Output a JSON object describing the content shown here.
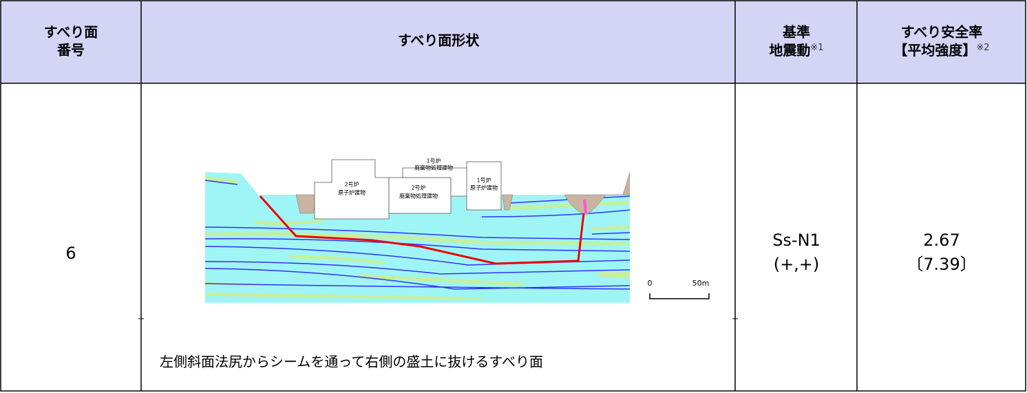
{
  "table": {
    "header": {
      "col1": [
        "すべり面",
        "番号"
      ],
      "col2": "すべり面形状",
      "col3": {
        "lines": [
          "基準",
          "地震動"
        ],
        "note": "※1"
      },
      "col4": {
        "lines": [
          "すべり安全率",
          "【平均強度】"
        ],
        "note": "※2"
      }
    },
    "row": {
      "number": "6",
      "diagram": {
        "buildings": [
          [
            "2号炉",
            "原子炉建物"
          ],
          [
            "2号炉",
            "廃棄物処理建物"
          ],
          [
            "1号炉",
            "廃棄物処理建物"
          ],
          [
            "1号炉",
            "原子炉建物"
          ]
        ],
        "scale": [
          "0",
          "50m"
        ]
      },
      "description": "左側斜面法尻からシームを通って右側の盛土に抜けるすべり面",
      "ground_motion": [
        "Ss-N1",
        "(+,+)"
      ],
      "safety_factor": [
        "2.67",
        "〔7.39〕"
      ]
    }
  }
}
